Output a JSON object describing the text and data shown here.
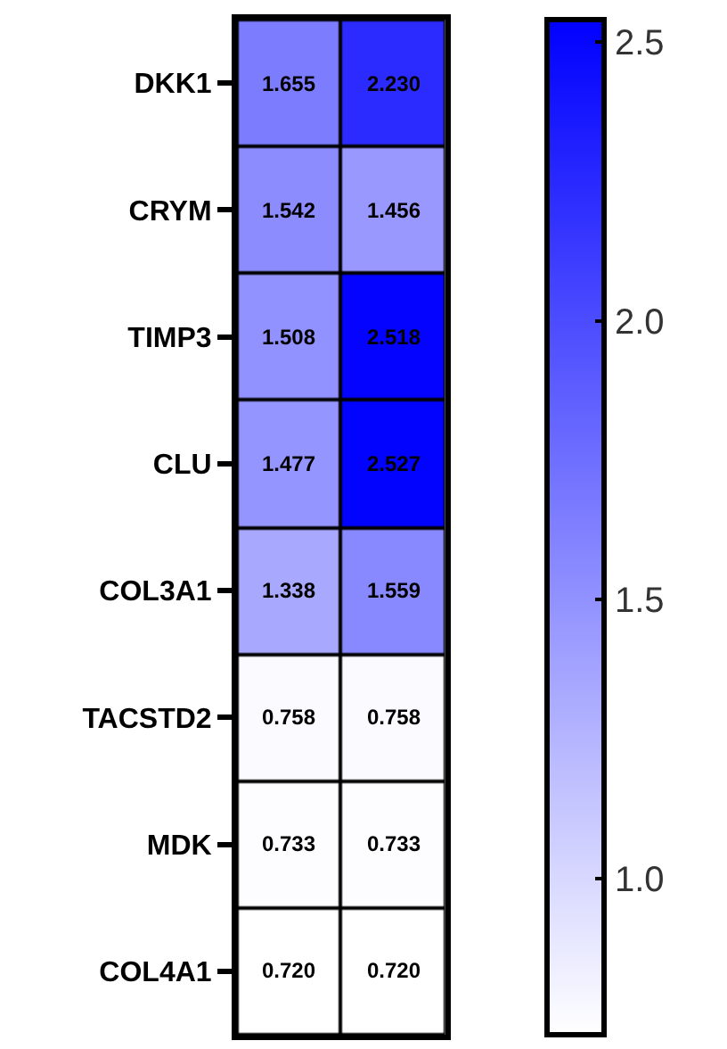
{
  "chart_data": {
    "type": "heatmap",
    "categories": [
      null,
      null
    ],
    "y_categories": [
      "DKK1",
      "CRYM",
      "TIMP3",
      "CLU",
      "COL3A1",
      "TACSTD2",
      "MDK",
      "COL4A1"
    ],
    "cells": [
      [
        1.655,
        2.23
      ],
      [
        1.542,
        1.456
      ],
      [
        1.508,
        2.518
      ],
      [
        1.477,
        2.527
      ],
      [
        1.338,
        1.559
      ],
      [
        0.758,
        0.758
      ],
      [
        0.733,
        0.733
      ],
      [
        0.72,
        0.72
      ]
    ],
    "cell_labels": [
      [
        "1.655",
        "2.230"
      ],
      [
        "1.542",
        "1.456"
      ],
      [
        "1.508",
        "2.518"
      ],
      [
        "1.477",
        "2.527"
      ],
      [
        "1.338",
        "1.559"
      ],
      [
        "0.758",
        "0.758"
      ],
      [
        "0.733",
        "0.733"
      ],
      [
        "0.720",
        "0.720"
      ]
    ],
    "data_labels": true,
    "clim": [
      0.72,
      2.54
    ],
    "cticks": [
      {
        "value": 1,
        "label": "1.0"
      },
      1.5,
      {
        "value": 2,
        "label": "2.0"
      },
      2.5
    ]
  }
}
